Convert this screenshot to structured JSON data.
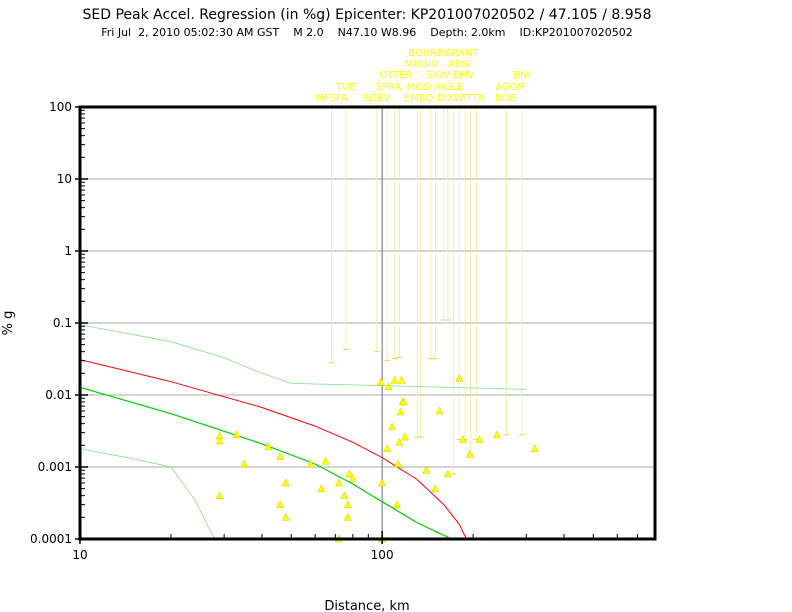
{
  "chart_data": {
    "type": "scatter",
    "title": "SED Peak Accel. Regression (in %g) Epicenter: KP201007020502 / 47.105 / 8.958",
    "subtitle": "Fri Jul  2, 2010 05:02:30 AM GST    M 2.0    N47.10 W8.96    Depth: 2.0km    ID:KP201007020502",
    "xlabel": "Distance, km",
    "ylabel": "% g",
    "xscale": "log",
    "yscale": "log",
    "xlim": [
      10,
      800
    ],
    "ylim": [
      0.0001,
      100
    ],
    "x_ticks": [
      10,
      100
    ],
    "y_ticks": [
      100,
      10,
      1,
      0.1,
      0.01,
      0.001,
      0.0001
    ],
    "x_tick_labels": [
      "10",
      "100"
    ],
    "y_tick_labels": [
      "100",
      "10",
      "1",
      "0.1",
      "0.01",
      "0.001",
      "0.0001"
    ],
    "grid": true,
    "colors": {
      "frame": "#000000",
      "grid": "#aaaaaa",
      "median": "#00cc00",
      "plus_2sigma": "#ff0000",
      "sigma_bands": "#88dd88",
      "observations": "#ffff00",
      "station_labels": "#ffff00",
      "reference_line": "#666688"
    },
    "reference_line_x": 100,
    "curves": {
      "median": [
        [
          10,
          0.0128
        ],
        [
          20,
          0.0055
        ],
        [
          40,
          0.0021
        ],
        [
          60,
          0.0011
        ],
        [
          80,
          0.00058
        ],
        [
          100,
          0.00033
        ],
        [
          130,
          0.00017
        ],
        [
          150,
          0.000128
        ],
        [
          170,
          0.0001
        ]
      ],
      "plus_2sigma": [
        [
          10,
          0.031
        ],
        [
          20,
          0.0153
        ],
        [
          40,
          0.0067
        ],
        [
          60,
          0.0037
        ],
        [
          80,
          0.0022
        ],
        [
          100,
          0.00135
        ],
        [
          130,
          0.00068
        ],
        [
          160,
          0.0003
        ],
        [
          180,
          0.00016
        ],
        [
          190,
          0.0001
        ]
      ],
      "upper_band": [
        [
          10,
          0.095
        ],
        [
          20,
          0.055
        ],
        [
          30,
          0.033
        ],
        [
          40,
          0.02
        ],
        [
          50,
          0.0145
        ],
        [
          100,
          0.0135
        ],
        [
          200,
          0.0125
        ],
        [
          300,
          0.012
        ]
      ],
      "lower_band": [
        [
          10,
          0.0018
        ],
        [
          15,
          0.0013
        ],
        [
          20,
          0.001
        ],
        [
          24,
          0.00035
        ],
        [
          27,
          0.00013
        ],
        [
          28,
          0.0001
        ]
      ]
    },
    "observations": [
      [
        29,
        0.0027
      ],
      [
        29,
        0.0023
      ],
      [
        29,
        0.0004
      ],
      [
        33,
        0.0028
      ],
      [
        35,
        0.0011
      ],
      [
        42,
        0.0019
      ],
      [
        46,
        0.0014
      ],
      [
        46,
        0.0003
      ],
      [
        48,
        0.0006
      ],
      [
        48,
        0.0002
      ],
      [
        58,
        0.0011
      ],
      [
        63,
        0.0005
      ],
      [
        65,
        0.0012
      ],
      [
        72,
        0.0006
      ],
      [
        72,
        0.0001
      ],
      [
        75,
        0.0004
      ],
      [
        77,
        0.0003
      ],
      [
        77,
        0.0002
      ],
      [
        78,
        0.0008
      ],
      [
        80,
        0.0007
      ],
      [
        99,
        0.015
      ],
      [
        100,
        0.0006
      ],
      [
        100,
        0.0001
      ],
      [
        104,
        0.0018
      ],
      [
        105,
        0.013
      ],
      [
        108,
        0.0036
      ],
      [
        110,
        0.016
      ],
      [
        112,
        0.0003
      ],
      [
        113,
        0.0011
      ],
      [
        114,
        0.0022
      ],
      [
        115,
        0.0058
      ],
      [
        116,
        0.016
      ],
      [
        117,
        0.008
      ],
      [
        118,
        0.008
      ],
      [
        119,
        0.0026
      ],
      [
        140,
        0.0009
      ],
      [
        150,
        0.0005
      ],
      [
        155,
        0.006
      ],
      [
        165,
        0.0008
      ],
      [
        180,
        0.017
      ],
      [
        185,
        0.0024
      ],
      [
        195,
        0.0015
      ],
      [
        210,
        0.0024
      ],
      [
        240,
        0.0028
      ],
      [
        320,
        0.0018
      ]
    ],
    "station_labels": [
      {
        "name": "MFSFA",
        "x": 68,
        "row": 4
      },
      {
        "name": "TUE",
        "x": 76,
        "row": 3
      },
      {
        "name": "SGEV",
        "x": 96,
        "row": 4
      },
      {
        "name": "SFRA",
        "x": 105,
        "row": 3
      },
      {
        "name": "OTTER",
        "x": 111,
        "row": 2
      },
      {
        "name": "EMBD",
        "x": 132,
        "row": 4
      },
      {
        "name": "MOSI",
        "x": 133,
        "row": 3
      },
      {
        "name": "MUGIO",
        "x": 135,
        "row": 1
      },
      {
        "name": "BOURR",
        "x": 140,
        "row": 0
      },
      {
        "name": "SIOV",
        "x": 153,
        "row": 2
      },
      {
        "name": "DIX",
        "x": 162,
        "row": 4
      },
      {
        "name": "AIGLE",
        "x": 166,
        "row": 3
      },
      {
        "name": "ABSI",
        "x": 180,
        "row": 1
      },
      {
        "name": "BRANT",
        "x": 183,
        "row": 0
      },
      {
        "name": "EMV",
        "x": 186,
        "row": 2
      },
      {
        "name": "WITTA",
        "x": 194,
        "row": 4
      },
      {
        "name": "BOB",
        "x": 257,
        "row": 4
      },
      {
        "name": "AGOR",
        "x": 265,
        "row": 3
      },
      {
        "name": "BNI",
        "x": 290,
        "row": 2
      }
    ],
    "station_stems": [
      {
        "x": 68,
        "y_top": 0.12,
        "y_mark": 0.028
      },
      {
        "x": 76,
        "y_top": 0.12,
        "y_mark": 0.043
      },
      {
        "x": 96,
        "y_top": 0.12,
        "y_mark": 0.04
      },
      {
        "x": 104,
        "y_top": 0.12,
        "y_mark": 0.03
      },
      {
        "x": 110,
        "y_top": 0.12,
        "y_mark": 0.032
      },
      {
        "x": 114,
        "y_top": 0.12,
        "y_mark": 0.033
      },
      {
        "x": 131,
        "y_top": 0.12,
        "y_mark": 0.0026
      },
      {
        "x": 134,
        "y_top": 0.12,
        "y_mark": 0.0026
      },
      {
        "x": 145,
        "y_top": 0.12,
        "y_mark": 0.032
      },
      {
        "x": 150,
        "y_top": 0.12,
        "y_mark": 0.032
      },
      {
        "x": 160,
        "y_top": 0.12,
        "y_mark": 0.11
      },
      {
        "x": 165,
        "y_top": 0.12,
        "y_mark": 0.11
      },
      {
        "x": 172,
        "y_top": 0.12,
        "y_mark": 0.0008
      },
      {
        "x": 180,
        "y_top": 0.12,
        "y_mark": 0.0024
      },
      {
        "x": 188,
        "y_top": 0.12,
        "y_mark": 0.0024
      },
      {
        "x": 196,
        "y_top": 0.12,
        "y_mark": 0.0015
      },
      {
        "x": 205,
        "y_top": 0.12,
        "y_mark": 0.0024
      },
      {
        "x": 258,
        "y_top": 0.12,
        "y_mark": 0.0028
      },
      {
        "x": 290,
        "y_top": 0.12,
        "y_mark": 0.0028
      }
    ]
  }
}
